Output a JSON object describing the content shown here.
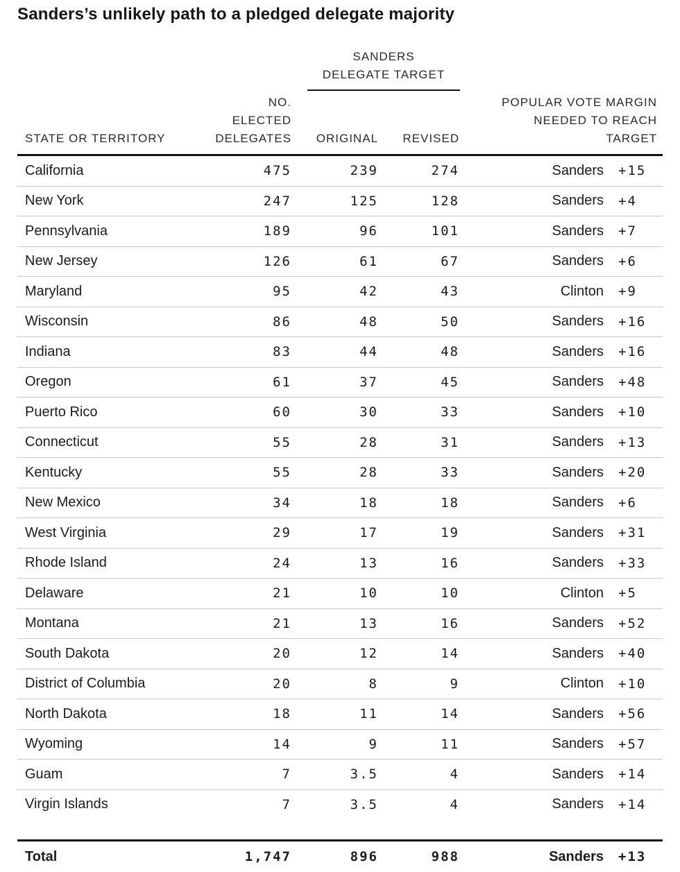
{
  "title": "Sanders’s unlikely path to a pledged delegate majority",
  "header": {
    "group_line1": "SANDERS",
    "group_line2": "DELEGATE TARGET",
    "state": "STATE OR TERRITORY",
    "elected_line1": "NO.",
    "elected_line2": "ELECTED",
    "elected_line3": "DELEGATES",
    "original": "ORIGINAL",
    "revised": "REVISED",
    "margin_line1": "POPULAR VOTE MARGIN",
    "margin_line2": "NEEDED TO REACH",
    "margin_line3": "TARGET"
  },
  "colors": {
    "text": "#1c1c1c",
    "header_text": "#2b2b2b",
    "row_divider": "#c9c9c9",
    "heavy_rule": "#111111",
    "background": "#ffffff"
  },
  "chart_data": {
    "type": "table",
    "title": "Sanders’s unlikely path to a pledged delegate majority",
    "columns": [
      "State or territory",
      "No. elected delegates",
      "Sanders delegate target: original",
      "Sanders delegate target: revised",
      "Popular vote margin needed to reach target: leader",
      "Popular vote margin needed to reach target: margin"
    ],
    "rows": [
      [
        "California",
        "475",
        "239",
        "274",
        "Sanders",
        "+15"
      ],
      [
        "New York",
        "247",
        "125",
        "128",
        "Sanders",
        "+4"
      ],
      [
        "Pennsylvania",
        "189",
        "96",
        "101",
        "Sanders",
        "+7"
      ],
      [
        "New Jersey",
        "126",
        "61",
        "67",
        "Sanders",
        "+6"
      ],
      [
        "Maryland",
        "95",
        "42",
        "43",
        "Clinton",
        "+9"
      ],
      [
        "Wisconsin",
        "86",
        "48",
        "50",
        "Sanders",
        "+16"
      ],
      [
        "Indiana",
        "83",
        "44",
        "48",
        "Sanders",
        "+16"
      ],
      [
        "Oregon",
        "61",
        "37",
        "45",
        "Sanders",
        "+48"
      ],
      [
        "Puerto Rico",
        "60",
        "30",
        "33",
        "Sanders",
        "+10"
      ],
      [
        "Connecticut",
        "55",
        "28",
        "31",
        "Sanders",
        "+13"
      ],
      [
        "Kentucky",
        "55",
        "28",
        "33",
        "Sanders",
        "+20"
      ],
      [
        "New Mexico",
        "34",
        "18",
        "18",
        "Sanders",
        "+6"
      ],
      [
        "West Virginia",
        "29",
        "17",
        "19",
        "Sanders",
        "+31"
      ],
      [
        "Rhode Island",
        "24",
        "13",
        "16",
        "Sanders",
        "+33"
      ],
      [
        "Delaware",
        "21",
        "10",
        "10",
        "Clinton",
        "+5"
      ],
      [
        "Montana",
        "21",
        "13",
        "16",
        "Sanders",
        "+52"
      ],
      [
        "South Dakota",
        "20",
        "12",
        "14",
        "Sanders",
        "+40"
      ],
      [
        "District of Columbia",
        "20",
        "8",
        "9",
        "Clinton",
        "+10"
      ],
      [
        "North Dakota",
        "18",
        "11",
        "14",
        "Sanders",
        "+56"
      ],
      [
        "Wyoming",
        "14",
        "9",
        "11",
        "Sanders",
        "+57"
      ],
      [
        "Guam",
        "7",
        "3.5",
        "4",
        "Sanders",
        "+14"
      ],
      [
        "Virgin Islands",
        "7",
        "3.5",
        "4",
        "Sanders",
        "+14"
      ]
    ],
    "total_row": [
      "Total",
      "1,747",
      "896",
      "988",
      "Sanders",
      "+13"
    ]
  }
}
